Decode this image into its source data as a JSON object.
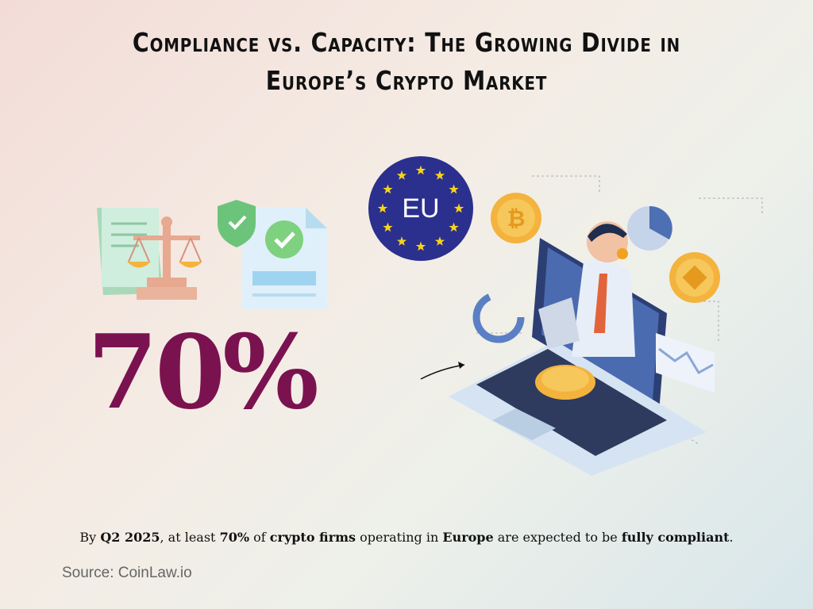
{
  "title": {
    "lines": [
      "Compliance vs. Capacity: The Growing Divide in",
      "Europe’s Crypto Market"
    ]
  },
  "stat": {
    "text": "70%",
    "color": "#7b1250"
  },
  "badge": {
    "label": "EU"
  },
  "caption": {
    "segments": [
      {
        "text": "By ",
        "bold": false
      },
      {
        "text": "Q2 2025",
        "bold": true
      },
      {
        "text": ", at least ",
        "bold": false
      },
      {
        "text": "70%",
        "bold": true
      },
      {
        "text": " of ",
        "bold": false
      },
      {
        "text": "crypto firms",
        "bold": true
      },
      {
        "text": " operating in ",
        "bold": false
      },
      {
        "text": "Europe",
        "bold": true
      },
      {
        "text": " are expected to be ",
        "bold": false
      },
      {
        "text": "fully compliant",
        "bold": true
      },
      {
        "text": ".",
        "bold": false
      }
    ]
  },
  "source": {
    "text": "Source: CoinLaw.io"
  }
}
